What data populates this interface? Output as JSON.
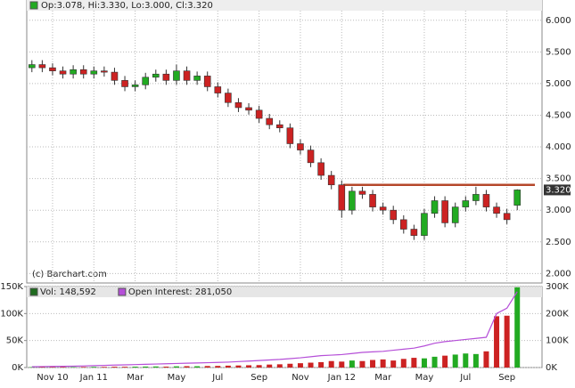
{
  "chart_data": [
    {
      "type": "candlestick",
      "header": "Op:3.078, Hi:3.330, Lo:3.000, Cl:3.320",
      "annotation": "(c) Barchart.com",
      "categories": [
        null,
        null,
        "Nov 10",
        null,
        null,
        null,
        "Jan 11",
        null,
        null,
        null,
        "Mar",
        null,
        null,
        null,
        "May",
        null,
        null,
        null,
        "Jul",
        null,
        null,
        null,
        "Sep",
        null,
        null,
        null,
        "Nov",
        null,
        null,
        null,
        "Jan 12",
        null,
        null,
        null,
        "Mar",
        null,
        null,
        null,
        "May",
        null,
        null,
        null,
        "Jul",
        null,
        null,
        null,
        "Sep",
        null
      ],
      "open": [
        5.25,
        5.3,
        5.25,
        5.2,
        5.15,
        5.22,
        5.15,
        5.2,
        5.18,
        5.05,
        4.95,
        4.98,
        5.1,
        5.15,
        5.05,
        5.2,
        5.05,
        5.12,
        4.95,
        4.85,
        4.7,
        4.62,
        4.58,
        4.45,
        4.35,
        4.3,
        4.05,
        3.95,
        3.75,
        3.55,
        3.4,
        3.0,
        3.3,
        3.25,
        3.05,
        3.0,
        2.85,
        2.7,
        2.6,
        2.95,
        3.15,
        2.8,
        3.05,
        3.15,
        3.25,
        3.05,
        2.95,
        3.078
      ],
      "high": [
        5.37,
        5.37,
        5.32,
        5.27,
        5.29,
        5.29,
        5.27,
        5.27,
        5.25,
        5.12,
        5.05,
        5.17,
        5.22,
        5.22,
        5.3,
        5.27,
        5.19,
        5.19,
        5.02,
        4.92,
        4.77,
        4.69,
        4.65,
        4.52,
        4.42,
        4.37,
        4.12,
        4.02,
        3.82,
        3.62,
        3.47,
        3.37,
        3.37,
        3.32,
        3.12,
        3.07,
        2.92,
        2.77,
        3.02,
        3.22,
        3.22,
        3.12,
        3.22,
        3.37,
        3.32,
        3.12,
        3.02,
        3.33
      ],
      "low": [
        5.18,
        5.18,
        5.13,
        5.08,
        5.08,
        5.08,
        5.08,
        5.11,
        4.98,
        4.88,
        4.88,
        4.91,
        5.03,
        4.98,
        4.98,
        4.98,
        4.98,
        4.88,
        4.78,
        4.63,
        4.55,
        4.51,
        4.38,
        4.28,
        4.23,
        3.98,
        3.88,
        3.68,
        3.48,
        3.33,
        2.88,
        2.93,
        3.18,
        2.98,
        2.93,
        2.78,
        2.63,
        2.53,
        2.53,
        2.88,
        2.73,
        2.73,
        2.98,
        3.08,
        2.98,
        2.88,
        2.78,
        3.0
      ],
      "close": [
        5.3,
        5.25,
        5.2,
        5.15,
        5.22,
        5.15,
        5.2,
        5.18,
        5.05,
        4.95,
        4.98,
        5.1,
        5.15,
        5.05,
        5.2,
        5.05,
        5.12,
        4.95,
        4.85,
        4.7,
        4.62,
        4.58,
        4.45,
        4.35,
        4.3,
        4.05,
        3.95,
        3.75,
        3.55,
        3.4,
        3.0,
        3.3,
        3.25,
        3.05,
        3.0,
        2.85,
        2.7,
        2.6,
        2.95,
        3.15,
        2.8,
        3.05,
        3.15,
        3.25,
        3.05,
        2.95,
        2.85,
        3.32
      ],
      "up_color": "#22aa22",
      "down_color": "#cc2222",
      "ylim": [
        1.85,
        6.32
      ],
      "yticks": [
        {
          "value": 2,
          "label": "2.000"
        },
        {
          "value": 2.5,
          "label": "2.500"
        },
        {
          "value": 3,
          "label": "3.000"
        },
        {
          "value": 3.5,
          "label": "3.500"
        },
        {
          "value": 4,
          "label": "4.000"
        },
        {
          "value": 4.5,
          "label": "4.500"
        },
        {
          "value": 5,
          "label": "5.000"
        },
        {
          "value": 5.5,
          "label": "5.500"
        },
        {
          "value": 6,
          "label": "6.000"
        }
      ],
      "resistance": 3.4,
      "resistance_color": "#b5472a",
      "last_price": {
        "value": 3.32,
        "label": "3.320"
      },
      "grid": true
    },
    {
      "type": "bar",
      "series": [
        {
          "name": "Vol: 148,592",
          "color": "#1f6b1f",
          "values": [
            800,
            900,
            1000,
            1200,
            900,
            1100,
            1300,
            1200,
            1500,
            1400,
            1600,
            1800,
            2000,
            1700,
            2200,
            2500,
            2400,
            2800,
            3000,
            3500,
            3800,
            4200,
            4500,
            5500,
            6000,
            7000,
            8000,
            9000,
            10000,
            12000,
            11000,
            13000,
            12000,
            14000,
            15000,
            13000,
            16000,
            18000,
            17000,
            20000,
            22000,
            24000,
            26000,
            25000,
            30000,
            95000,
            96000,
            148592
          ]
        },
        {
          "name": "Open Interest: 281,050",
          "color": "#b54fd8",
          "axis": "y2",
          "values": [
            3000,
            3500,
            4000,
            4500,
            5000,
            6000,
            7000,
            8000,
            9000,
            10000,
            11000,
            12000,
            13000,
            14000,
            15000,
            16000,
            17000,
            18000,
            19000,
            20000,
            22000,
            24000,
            26000,
            28000,
            30000,
            33000,
            36000,
            40000,
            44000,
            46000,
            48000,
            52000,
            56000,
            58000,
            60000,
            64000,
            68000,
            72000,
            80000,
            90000,
            96000,
            100000,
            104000,
            108000,
            112000,
            200000,
            220000,
            281050
          ]
        }
      ],
      "ylim": [
        0,
        150000
      ],
      "yticks": [
        {
          "value": 0,
          "label": "0K"
        },
        {
          "value": 50000,
          "label": "50K"
        },
        {
          "value": 100000,
          "label": "100K"
        },
        {
          "value": 150000,
          "label": "150K"
        }
      ],
      "y2lim": [
        0,
        300000
      ],
      "y2ticks": [
        {
          "value": 0,
          "label": "0K"
        },
        {
          "value": 100000,
          "label": "100K"
        },
        {
          "value": 200000,
          "label": "200K"
        },
        {
          "value": 300000,
          "label": "300K"
        }
      ]
    }
  ]
}
